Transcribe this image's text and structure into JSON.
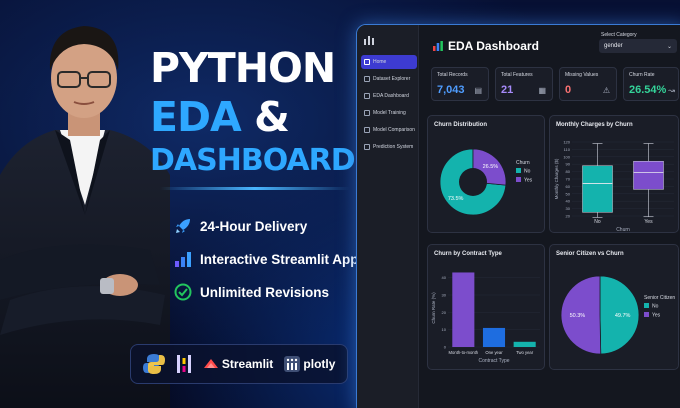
{
  "promo": {
    "headline_line1": "PYTHON",
    "headline_eda": "EDA",
    "headline_amp": "&",
    "headline_line3": "DASHBOARDS",
    "features": [
      {
        "label": "24-Hour Delivery",
        "icon": "rocket-icon"
      },
      {
        "label": "Interactive Streamlit Apps",
        "icon": "bar-chart-icon"
      },
      {
        "label": "Unlimited Revisions",
        "icon": "check-circle-icon"
      }
    ],
    "logos": {
      "streamlit": "Streamlit",
      "plotly": "plotly"
    },
    "colors": {
      "accent": "#2ea8ff",
      "check": "#22c55e",
      "rocket": "#3ba0ff"
    }
  },
  "dashboard": {
    "title": "EDA Dashboard",
    "category_label": "Select Category",
    "category_value": "gender",
    "nav": [
      "Home",
      "Dataset Explorer",
      "EDA Dashboard",
      "Model Training",
      "Model Comparison",
      "Prediction System"
    ],
    "kpis": [
      {
        "label": "Total Records",
        "value": "7,043",
        "color": "#4f9dff",
        "icon": "database-icon",
        "glyph": "▤"
      },
      {
        "label": "Total Features",
        "value": "21",
        "color": "#a78bfa",
        "icon": "grid-icon",
        "glyph": "▦"
      },
      {
        "label": "Missing Values",
        "value": "0",
        "color": "#f87171",
        "icon": "warning-icon",
        "glyph": "⚠"
      },
      {
        "label": "Churn Rate",
        "value": "26.54%",
        "color": "#34d399",
        "icon": "trend-icon",
        "glyph": "↝"
      }
    ],
    "colors": {
      "no": "#14b3ad",
      "yes": "#7c4dcc"
    }
  },
  "chart_data": [
    {
      "type": "pie",
      "title": "Churn Distribution",
      "donut": true,
      "legend_title": "Churn",
      "labels": [
        "No",
        "Yes"
      ],
      "values": [
        73.5,
        26.5
      ],
      "value_labels": [
        "73.5%",
        "26.5%"
      ],
      "colors": [
        "#14b3ad",
        "#7c4dcc"
      ]
    },
    {
      "type": "box",
      "title": "Monthly Charges by Churn",
      "xlabel": "Churn",
      "ylabel": "Monthly Charges ($)",
      "categories": [
        "No",
        "Yes"
      ],
      "yticks": [
        20,
        30,
        40,
        50,
        60,
        70,
        80,
        90,
        100,
        110,
        120
      ],
      "ylim": [
        20,
        120
      ],
      "boxes": [
        {
          "min": 18,
          "q1": 25,
          "median": 64,
          "q3": 88,
          "max": 118,
          "color": "#14b3ad"
        },
        {
          "min": 19,
          "q1": 56,
          "median": 79,
          "q3": 94,
          "max": 118,
          "color": "#7c4dcc"
        }
      ]
    },
    {
      "type": "bar",
      "title": "Churn by Contract Type",
      "xlabel": "Contract Type",
      "ylabel": "Churn Rate (%)",
      "categories": [
        "Month-to-month",
        "One year",
        "Two year"
      ],
      "values": [
        43,
        11,
        3
      ],
      "colors": [
        "#7c4dcc",
        "#1e6de0",
        "#14b3ad"
      ],
      "yticks": [
        0,
        10,
        20,
        30,
        40
      ],
      "ylim": [
        0,
        45
      ]
    },
    {
      "type": "pie",
      "title": "Senior Citizen vs Churn",
      "donut": false,
      "legend_title": "Senior Citizen",
      "labels": [
        "No",
        "Yes"
      ],
      "values": [
        49.7,
        50.3
      ],
      "value_labels": [
        "49.7%",
        "50.3%"
      ],
      "colors": [
        "#14b3ad",
        "#7c4dcc"
      ]
    }
  ]
}
